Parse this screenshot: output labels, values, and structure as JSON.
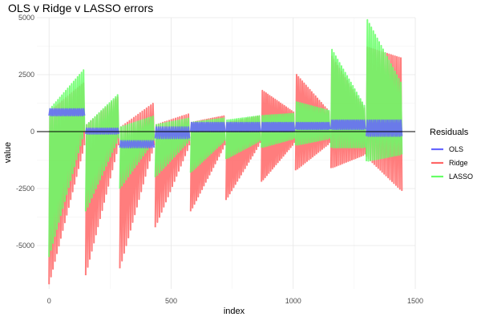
{
  "chart_data": {
    "type": "line",
    "title": "OLS v Ridge v LASSO errors",
    "xlabel": "index",
    "ylabel": "value",
    "xlim": [
      -50,
      1500
    ],
    "ylim": [
      -6900,
      5000
    ],
    "x_ticks": [
      0,
      500,
      1000,
      1500
    ],
    "y_ticks": [
      5000,
      2500,
      0,
      -2500,
      -5000
    ],
    "x_tick_labels": [
      "0",
      "500",
      "1000",
      "1500"
    ],
    "y_tick_labels": [
      "5000",
      "2500",
      "0",
      "-2500",
      "-5000"
    ],
    "hline": 0,
    "grid": true,
    "legend": {
      "title": "Residuals",
      "placement": "right"
    },
    "colors": {
      "OLS": "#6666ff",
      "Ridge": "#ff6666",
      "LASSO": "#66ff66"
    },
    "opacity": 0.85,
    "series": [
      {
        "name": "Ridge",
        "segments": [
          {
            "x0": 0,
            "x1": 145,
            "n": 18,
            "low_start": -6700,
            "low_end": -600,
            "high_start": 900,
            "high_end": 2200
          },
          {
            "x0": 150,
            "x1": 285,
            "n": 16,
            "low_start": -6300,
            "low_end": -600,
            "high_start": 300,
            "high_end": 1600
          },
          {
            "x0": 290,
            "x1": 430,
            "n": 16,
            "low_start": -6000,
            "low_end": -600,
            "high_start": 200,
            "high_end": 1300
          },
          {
            "x0": 435,
            "x1": 575,
            "n": 16,
            "low_start": -4200,
            "low_end": -600,
            "high_start": 300,
            "high_end": 800
          },
          {
            "x0": 580,
            "x1": 720,
            "n": 18,
            "low_start": -3500,
            "low_end": -600,
            "high_start": 400,
            "high_end": 700
          },
          {
            "x0": 725,
            "x1": 865,
            "n": 18,
            "low_start": -3000,
            "low_end": -500,
            "high_start": 400,
            "high_end": 700
          },
          {
            "x0": 870,
            "x1": 1005,
            "n": 18,
            "low_start": -2200,
            "low_end": -500,
            "high_start": 1800,
            "high_end": 800
          },
          {
            "x0": 1010,
            "x1": 1150,
            "n": 18,
            "low_start": -1700,
            "low_end": -500,
            "high_start": 2500,
            "high_end": 800
          },
          {
            "x0": 1155,
            "x1": 1295,
            "n": 18,
            "low_start": -1600,
            "low_end": -1000,
            "high_start": 3300,
            "high_end": 900
          },
          {
            "x0": 1300,
            "x1": 1445,
            "n": 18,
            "low_start": -1100,
            "low_end": -2600,
            "high_start": 3700,
            "high_end": 3200
          }
        ]
      },
      {
        "name": "LASSO",
        "segments": [
          {
            "x0": 0,
            "x1": 145,
            "n": 18,
            "low_start": -5500,
            "low_end": 0,
            "high_start": 1000,
            "high_end": 2800
          },
          {
            "x0": 150,
            "x1": 285,
            "n": 16,
            "low_start": -3500,
            "low_end": -300,
            "high_start": 300,
            "high_end": 1700
          },
          {
            "x0": 290,
            "x1": 430,
            "n": 16,
            "low_start": -2500,
            "low_end": -400,
            "high_start": 200,
            "high_end": 700
          },
          {
            "x0": 435,
            "x1": 575,
            "n": 16,
            "low_start": -2000,
            "low_end": -400,
            "high_start": 300,
            "high_end": 600
          },
          {
            "x0": 580,
            "x1": 720,
            "n": 18,
            "low_start": -1800,
            "low_end": -400,
            "high_start": 400,
            "high_end": 600
          },
          {
            "x0": 725,
            "x1": 865,
            "n": 18,
            "low_start": -1200,
            "low_end": -400,
            "high_start": 500,
            "high_end": 700
          },
          {
            "x0": 870,
            "x1": 1005,
            "n": 18,
            "low_start": -700,
            "low_end": -300,
            "high_start": 700,
            "high_end": 800
          },
          {
            "x0": 1010,
            "x1": 1150,
            "n": 18,
            "low_start": -600,
            "low_end": -300,
            "high_start": 1300,
            "high_end": 900
          },
          {
            "x0": 1155,
            "x1": 1295,
            "n": 18,
            "low_start": -700,
            "low_end": -700,
            "high_start": 3600,
            "high_end": 1000
          },
          {
            "x0": 1300,
            "x1": 1445,
            "n": 18,
            "low_start": -1300,
            "low_end": -1000,
            "high_start": 4900,
            "high_end": 2000
          }
        ]
      },
      {
        "name": "OLS",
        "segments": [
          {
            "x0": 0,
            "x1": 145,
            "n": 18,
            "low_start": 700,
            "low_end": 700,
            "high_start": 1000,
            "high_end": 1000
          },
          {
            "x0": 150,
            "x1": 285,
            "n": 16,
            "low_start": -100,
            "low_end": -100,
            "high_start": 150,
            "high_end": 150
          },
          {
            "x0": 290,
            "x1": 430,
            "n": 16,
            "low_start": -700,
            "low_end": -700,
            "high_start": -400,
            "high_end": -400
          },
          {
            "x0": 435,
            "x1": 575,
            "n": 16,
            "low_start": -300,
            "low_end": -300,
            "high_start": 200,
            "high_end": 200
          },
          {
            "x0": 580,
            "x1": 720,
            "n": 18,
            "low_start": 0,
            "low_end": 0,
            "high_start": 400,
            "high_end": 400
          },
          {
            "x0": 725,
            "x1": 865,
            "n": 18,
            "low_start": 0,
            "low_end": 0,
            "high_start": 400,
            "high_end": 400
          },
          {
            "x0": 870,
            "x1": 1005,
            "n": 18,
            "low_start": 0,
            "low_end": 0,
            "high_start": 400,
            "high_end": 400
          },
          {
            "x0": 1010,
            "x1": 1150,
            "n": 18,
            "low_start": 100,
            "low_end": 100,
            "high_start": 400,
            "high_end": 400
          },
          {
            "x0": 1155,
            "x1": 1295,
            "n": 18,
            "low_start": 100,
            "low_end": 100,
            "high_start": 500,
            "high_end": 500
          },
          {
            "x0": 1300,
            "x1": 1445,
            "n": 18,
            "low_start": -200,
            "low_end": -200,
            "high_start": 500,
            "high_end": 500
          }
        ]
      }
    ]
  }
}
